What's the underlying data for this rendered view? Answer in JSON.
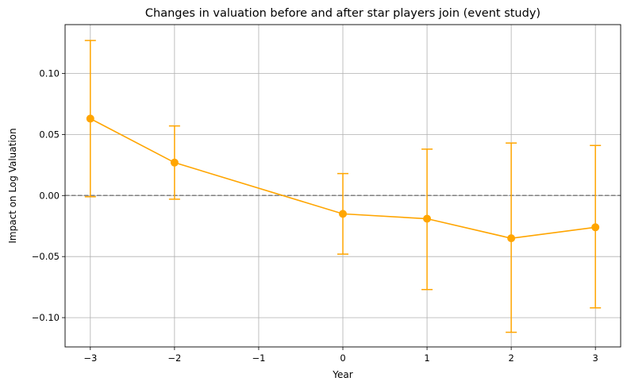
{
  "chart_data": {
    "type": "line",
    "title": "Changes in valuation before and after star players join (event study)",
    "xlabel": "Year",
    "ylabel": "Impact on Log Valuation",
    "xlim": [
      -3.3,
      3.3
    ],
    "ylim": [
      -0.124,
      0.14
    ],
    "xticks": [
      -3,
      -2,
      -1,
      0,
      1,
      2,
      3
    ],
    "xtick_labels": [
      "−3",
      "−2",
      "−1",
      "0",
      "1",
      "2",
      "3"
    ],
    "yticks": [
      -0.1,
      -0.05,
      0.0,
      0.05,
      0.1
    ],
    "ytick_labels": [
      "−0.10",
      "−0.05",
      "0.00",
      "0.05",
      "0.10"
    ],
    "grid": true,
    "reference_line": {
      "y": 0,
      "style": "dashed",
      "color": "#808080"
    },
    "series": [
      {
        "color": "#FFA500",
        "marker": "circle",
        "points": [
          {
            "x": -3,
            "y": 0.063,
            "lower": -0.001,
            "upper": 0.127
          },
          {
            "x": -2,
            "y": 0.027,
            "lower": -0.003,
            "upper": 0.057
          },
          {
            "x": 0,
            "y": -0.015,
            "lower": -0.048,
            "upper": 0.018
          },
          {
            "x": 1,
            "y": -0.019,
            "lower": -0.077,
            "upper": 0.038
          },
          {
            "x": 2,
            "y": -0.035,
            "lower": -0.112,
            "upper": 0.043
          },
          {
            "x": 3,
            "y": -0.026,
            "lower": -0.092,
            "upper": 0.041
          }
        ]
      }
    ]
  }
}
